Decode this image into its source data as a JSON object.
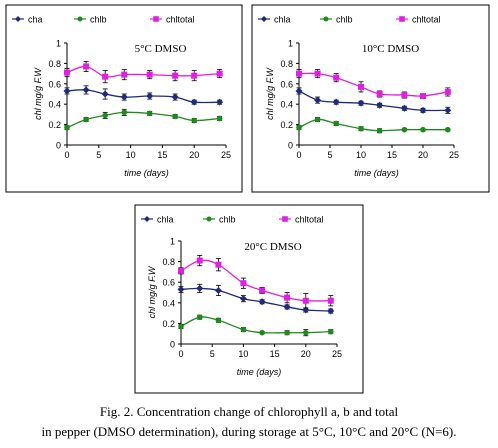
{
  "colors": {
    "chla": "#1f2a7a",
    "chlb": "#1e8a1e",
    "chltotal": "#e020e0",
    "frame": "#000000"
  },
  "chart_data": [
    {
      "type": "line",
      "title": "5°C DMSO",
      "xlabel": "time (days)",
      "ylabel": "chl mg/g F.W",
      "xlim": [
        0,
        25
      ],
      "ylim": [
        0,
        1
      ],
      "xticks": [
        "0",
        "5",
        "10",
        "15",
        "20",
        "25"
      ],
      "yticks": [
        "0",
        "0.2",
        "0.4",
        "0.6",
        "0.8",
        "1"
      ],
      "grid": false,
      "legend": "top",
      "x": [
        0,
        3,
        6,
        9,
        13,
        17,
        20,
        24
      ],
      "series": [
        {
          "name": "cha",
          "key": "chla",
          "values": [
            0.53,
            0.54,
            0.5,
            0.47,
            0.48,
            0.47,
            0.42,
            0.42
          ],
          "err": [
            0.03,
            0.04,
            0.05,
            0.03,
            0.03,
            0.03,
            0.02,
            0.02
          ]
        },
        {
          "name": "chlb",
          "key": "chlb",
          "values": [
            0.17,
            0.25,
            0.29,
            0.32,
            0.31,
            0.28,
            0.24,
            0.26
          ],
          "err": [
            0.02,
            0.02,
            0.03,
            0.03,
            0.02,
            0.02,
            0.02,
            0.02
          ]
        },
        {
          "name": "chltotal",
          "key": "chltotal",
          "values": [
            0.71,
            0.77,
            0.67,
            0.69,
            0.69,
            0.68,
            0.68,
            0.7
          ],
          "err": [
            0.04,
            0.05,
            0.06,
            0.05,
            0.04,
            0.05,
            0.05,
            0.04
          ]
        }
      ]
    },
    {
      "type": "line",
      "title": "10°C DMSO",
      "xlabel": "time (days)",
      "ylabel": "chl mg/g F.W",
      "xlim": [
        0,
        25
      ],
      "ylim": [
        0,
        1
      ],
      "xticks": [
        "0",
        "5",
        "10",
        "15",
        "20",
        "25"
      ],
      "yticks": [
        "0",
        "0.2",
        "0.4",
        "0.6",
        "0.8",
        "1"
      ],
      "grid": false,
      "legend": "top",
      "x": [
        0,
        3,
        6,
        10,
        13,
        17,
        20,
        24
      ],
      "series": [
        {
          "name": "chla",
          "key": "chla",
          "values": [
            0.53,
            0.44,
            0.42,
            0.41,
            0.39,
            0.36,
            0.34,
            0.34
          ],
          "err": [
            0.03,
            0.03,
            0.02,
            0.02,
            0.02,
            0.02,
            0.02,
            0.03
          ]
        },
        {
          "name": "chlb",
          "key": "chlb",
          "values": [
            0.17,
            0.25,
            0.21,
            0.16,
            0.14,
            0.15,
            0.15,
            0.15
          ],
          "err": [
            0.02,
            0.02,
            0.02,
            0.02,
            0.02,
            0.01,
            0.01,
            0.01
          ]
        },
        {
          "name": "chltotal",
          "key": "chltotal",
          "values": [
            0.7,
            0.7,
            0.66,
            0.57,
            0.5,
            0.49,
            0.48,
            0.52
          ],
          "err": [
            0.04,
            0.04,
            0.04,
            0.05,
            0.03,
            0.03,
            0.02,
            0.04
          ]
        }
      ]
    },
    {
      "type": "line",
      "title": "20°C DMSO",
      "xlabel": "time (days)",
      "ylabel": "chl mg/g F.W",
      "xlim": [
        0,
        25
      ],
      "ylim": [
        0,
        1
      ],
      "xticks": [
        "0",
        "5",
        "10",
        "15",
        "20",
        "25"
      ],
      "yticks": [
        "0",
        "0.2",
        "0.4",
        "0.6",
        "0.8",
        "1"
      ],
      "grid": false,
      "legend": "top",
      "x": [
        0,
        3,
        6,
        10,
        13,
        17,
        20,
        24
      ],
      "series": [
        {
          "name": "chla",
          "key": "chla",
          "values": [
            0.53,
            0.54,
            0.52,
            0.44,
            0.41,
            0.36,
            0.33,
            0.32
          ],
          "err": [
            0.03,
            0.04,
            0.05,
            0.03,
            0.02,
            0.02,
            0.02,
            0.02
          ]
        },
        {
          "name": "chlb",
          "key": "chlb",
          "values": [
            0.17,
            0.26,
            0.23,
            0.14,
            0.11,
            0.11,
            0.11,
            0.12
          ],
          "err": [
            0.02,
            0.02,
            0.02,
            0.02,
            0.01,
            0.02,
            0.03,
            0.02
          ]
        },
        {
          "name": "chltotal",
          "key": "chltotal",
          "values": [
            0.71,
            0.81,
            0.77,
            0.59,
            0.52,
            0.45,
            0.42,
            0.42
          ],
          "err": [
            0.03,
            0.05,
            0.06,
            0.05,
            0.03,
            0.05,
            0.07,
            0.05
          ]
        }
      ]
    }
  ],
  "caption": {
    "line1": "Fig. 2. Concentration change of chlorophyll a, b and total",
    "line2": "in pepper (DMSO determination), during storage at 5°C, 10°C and 20°C (N=6)."
  }
}
